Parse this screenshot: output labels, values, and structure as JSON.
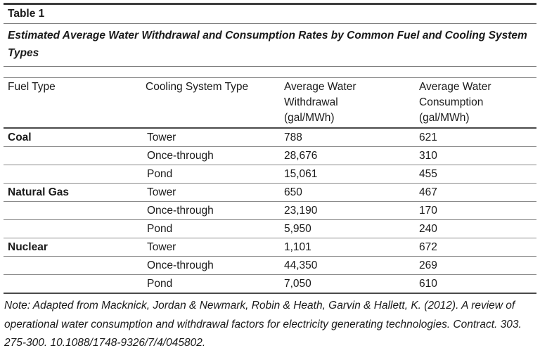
{
  "caption": {
    "label": "Table 1",
    "title": "Estimated Average Water Withdrawal and Consumption Rates by Common Fuel and Cooling System Types"
  },
  "table": {
    "headers": [
      {
        "label": "Fuel Type",
        "sub": ""
      },
      {
        "label": "Cooling System Type",
        "sub": ""
      },
      {
        "label": "Average Water Withdrawal",
        "sub": "(gal/MWh)"
      },
      {
        "label": "Average Water Consumption",
        "sub": "(gal/MWh)"
      }
    ],
    "rows": [
      {
        "fuel": "Coal",
        "cooling": "Tower",
        "withdrawal": "788",
        "consumption": "621"
      },
      {
        "fuel": "",
        "cooling": "Once-through",
        "withdrawal": "28,676",
        "consumption": "310"
      },
      {
        "fuel": "",
        "cooling": "Pond",
        "withdrawal": "15,061",
        "consumption": "455"
      },
      {
        "fuel": "Natural Gas",
        "cooling": "Tower",
        "withdrawal": "650",
        "consumption": "467"
      },
      {
        "fuel": "",
        "cooling": "Once-through",
        "withdrawal": "23,190",
        "consumption": "170"
      },
      {
        "fuel": "",
        "cooling": "Pond",
        "withdrawal": "5,950",
        "consumption": "240"
      },
      {
        "fuel": "Nuclear",
        "cooling": "Tower",
        "withdrawal": "1,101",
        "consumption": "672"
      },
      {
        "fuel": "",
        "cooling": "Once-through",
        "withdrawal": "44,350",
        "consumption": "269"
      },
      {
        "fuel": "",
        "cooling": "Pond",
        "withdrawal": "7,050",
        "consumption": "610"
      }
    ]
  },
  "note": {
    "text": "Note: Adapted from Macknick, Jordan & Newmark, Robin & Heath, Garvin & Hallett, K. (2012). A review of operational water consumption and withdrawal factors for electricity generating technologies. Contract. 303. 275-300. 10.1088/1748-9326/7/4/045802."
  },
  "colors": {
    "text": "#1a1a1a",
    "rule_thick": "#4a4a4a",
    "rule_thin": "#8a8a8a"
  }
}
